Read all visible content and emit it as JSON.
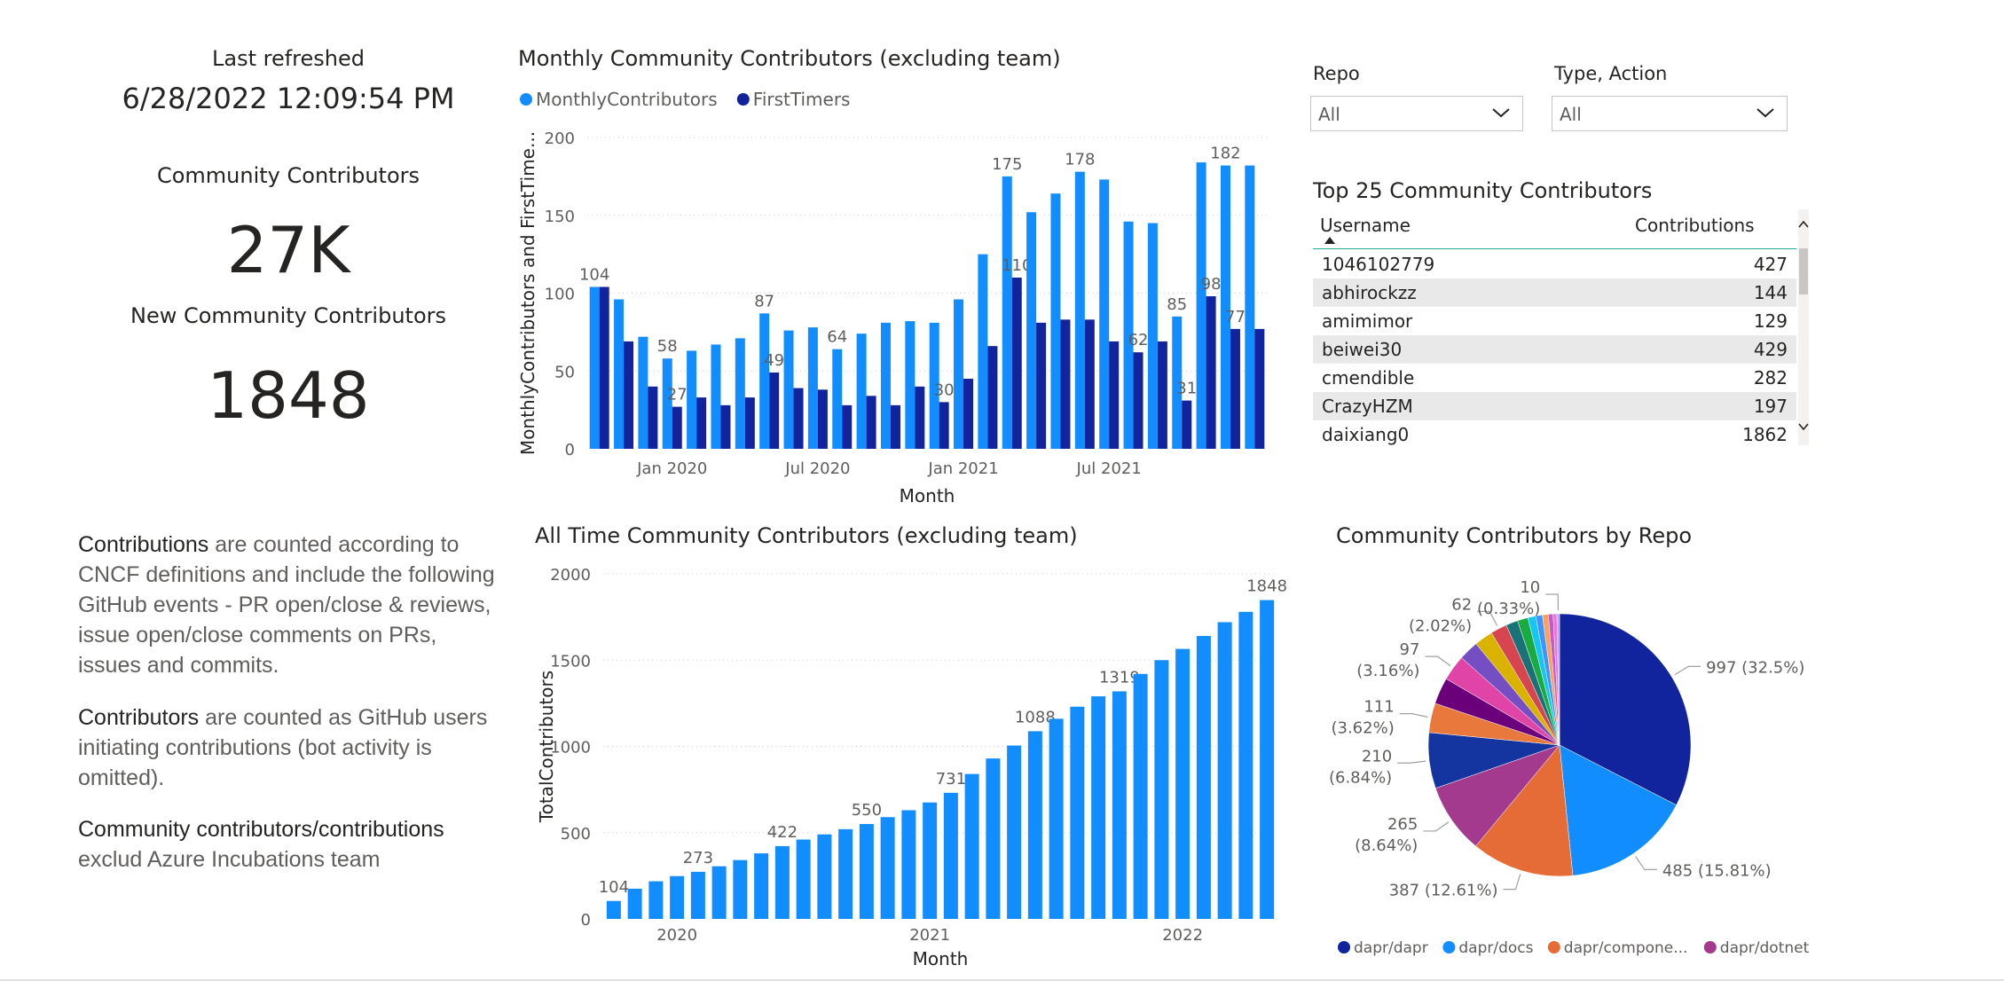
{
  "kpis": {
    "refreshed_label": "Last refreshed",
    "refreshed_value": "6/28/2022 12:09:54 PM",
    "community_label": "Community Contributors",
    "community_value": "27K",
    "new_label": "New Community Contributors",
    "new_value": "1848"
  },
  "notes": {
    "n1_bold": "Contributions",
    "n1_rest": " are counted according to CNCF definitions and include the following GitHub events - PR open/close & reviews, issue open/close comments on PRs, issues and commits.",
    "n2_bold": "Contributors",
    "n2_rest": " are counted as GitHub users initiating contributions (bot activity is omitted).",
    "n3_bold": "Community contributors/contributions",
    "n3_rest": " exclud Azure Incubations team"
  },
  "filters": {
    "repo_label": "Repo",
    "repo_value": "All",
    "type_label": "Type, Action",
    "type_value": "All"
  },
  "table": {
    "title": "Top 25 Community Contributors",
    "col_username": "Username",
    "col_contributions": "Contributions",
    "rows": [
      {
        "user": "1046102779",
        "count": "427"
      },
      {
        "user": "abhirockzz",
        "count": "144"
      },
      {
        "user": "amimimor",
        "count": "129"
      },
      {
        "user": "beiwei30",
        "count": "429"
      },
      {
        "user": "cmendible",
        "count": "282"
      },
      {
        "user": "CrazyHZM",
        "count": "197"
      },
      {
        "user": "daixiang0",
        "count": "1862"
      }
    ]
  },
  "chart_data": [
    {
      "type": "bar",
      "title": "Monthly Community Contributors (excluding team)",
      "xlabel": "Month",
      "ylabel": "MonthlyContributors and FirstTime...",
      "ylim": [
        0,
        200
      ],
      "yticks": [
        "0",
        "50",
        "100",
        "150",
        "200"
      ],
      "xticks": [
        "Jan 2020",
        "Jul 2020",
        "Jan 2021",
        "Jul 2021"
      ],
      "legend": "top-left",
      "grid": true,
      "categories": [
        "2019-10",
        "2019-11",
        "2019-12",
        "2020-01",
        "2020-02",
        "2020-03",
        "2020-04",
        "2020-05",
        "2020-06",
        "2020-07",
        "2020-08",
        "2020-09",
        "2020-10",
        "2020-11",
        "2020-12",
        "2021-01",
        "2021-02",
        "2021-03",
        "2021-04",
        "2021-05",
        "2021-06",
        "2021-07",
        "2021-08",
        "2021-09",
        "2021-10",
        "2021-11",
        "2021-12",
        "2022-01"
      ],
      "series": [
        {
          "name": "MonthlyContributors",
          "color": "#118DFF",
          "values": [
            104,
            96,
            72,
            58,
            63,
            67,
            71,
            87,
            76,
            78,
            64,
            74,
            81,
            82,
            81,
            96,
            125,
            175,
            152,
            164,
            178,
            173,
            146,
            145,
            85,
            184,
            182,
            182
          ],
          "labels": [
            "104",
            "",
            "",
            "58",
            "",
            "",
            "",
            "87",
            "",
            "",
            "64",
            "",
            "",
            "",
            "",
            "",
            "",
            "175",
            "",
            "",
            "178",
            "",
            "",
            "",
            "85",
            "",
            "182",
            ""
          ]
        },
        {
          "name": "FirstTimers",
          "color": "#12239E",
          "values": [
            104,
            69,
            40,
            27,
            33,
            28,
            33,
            49,
            39,
            38,
            28,
            34,
            28,
            40,
            30,
            45,
            66,
            110,
            81,
            83,
            83,
            69,
            62,
            69,
            31,
            98,
            77,
            77
          ],
          "labels": [
            "",
            "",
            "",
            "27",
            "",
            "",
            "",
            "49",
            "",
            "",
            "",
            "",
            "",
            "",
            "30",
            "",
            "",
            "110",
            "",
            "",
            "",
            "",
            "62",
            "",
            "31",
            "98",
            "77",
            ""
          ]
        }
      ]
    },
    {
      "type": "bar",
      "title": "All Time Community Contributors (excluding team)",
      "xlabel": "Month",
      "ylabel": "TotalContributors",
      "ylim": [
        0,
        2000
      ],
      "yticks": [
        "0",
        "500",
        "1000",
        "1500",
        "2000"
      ],
      "xticks": [
        "2020",
        "2021",
        "2022"
      ],
      "grid": true,
      "series": [
        {
          "name": "",
          "color": "#118DFF",
          "values": [
            104,
            175,
            218,
            248,
            273,
            305,
            341,
            380,
            422,
            460,
            490,
            520,
            550,
            590,
            630,
            675,
            731,
            840,
            930,
            1005,
            1088,
            1160,
            1230,
            1290,
            1319,
            1420,
            1500,
            1565,
            1640,
            1720,
            1780,
            1848
          ],
          "labels": [
            "104",
            "",
            "",
            "",
            "273",
            "",
            "",
            "",
            "422",
            "",
            "",
            "",
            "550",
            "",
            "",
            "",
            "731",
            "",
            "",
            "",
            "1088",
            "",
            "",
            "",
            "1319",
            "",
            "",
            "",
            "",
            "",
            "",
            "1848"
          ]
        }
      ]
    },
    {
      "type": "pie",
      "title": "Community Contributors by Repo",
      "legend": "bottom",
      "legend_items": [
        {
          "name": "dapr/dapr",
          "color": "#12239E"
        },
        {
          "name": "dapr/docs",
          "color": "#118DFF"
        },
        {
          "name": "dapr/compone...",
          "color": "#E66C37"
        },
        {
          "name": "dapr/dotnet-s...",
          "color": "#A33A8D"
        }
      ],
      "slices": [
        {
          "value": 997,
          "label": "997 (32.5%)",
          "color": "#12239E"
        },
        {
          "value": 485,
          "label": "485 (15.81%)",
          "color": "#118DFF"
        },
        {
          "value": 387,
          "label": "387 (12.61%)",
          "color": "#E66C37"
        },
        {
          "value": 265,
          "label": "265 (8.64%)",
          "color": "#A33A8D"
        },
        {
          "value": 210,
          "label": "210 (6.84%)",
          "color": "#1435A0"
        },
        {
          "value": 111,
          "label": "111 (3.62%)",
          "color": "#E8783B"
        },
        {
          "value": 100,
          "label": "",
          "color": "#6B007B"
        },
        {
          "value": 97,
          "label": "97 (3.16%)",
          "color": "#E044A7"
        },
        {
          "value": 75,
          "label": "",
          "color": "#744EC2"
        },
        {
          "value": 70,
          "label": "",
          "color": "#D9B300"
        },
        {
          "value": 62,
          "label": "62 (2.02%)",
          "color": "#D64550"
        },
        {
          "value": 45,
          "label": "",
          "color": "#197278"
        },
        {
          "value": 40,
          "label": "",
          "color": "#1AAB40"
        },
        {
          "value": 30,
          "label": "",
          "color": "#15C6F4"
        },
        {
          "value": 25,
          "label": "",
          "color": "#4092FF"
        },
        {
          "value": 22,
          "label": "",
          "color": "#FFA058"
        },
        {
          "value": 18,
          "label": "",
          "color": "#BE5DC9"
        },
        {
          "value": 14,
          "label": "",
          "color": "#F472D0"
        },
        {
          "value": 10,
          "label": "10 (0.33%)",
          "color": "#B5A1FF"
        }
      ]
    }
  ]
}
